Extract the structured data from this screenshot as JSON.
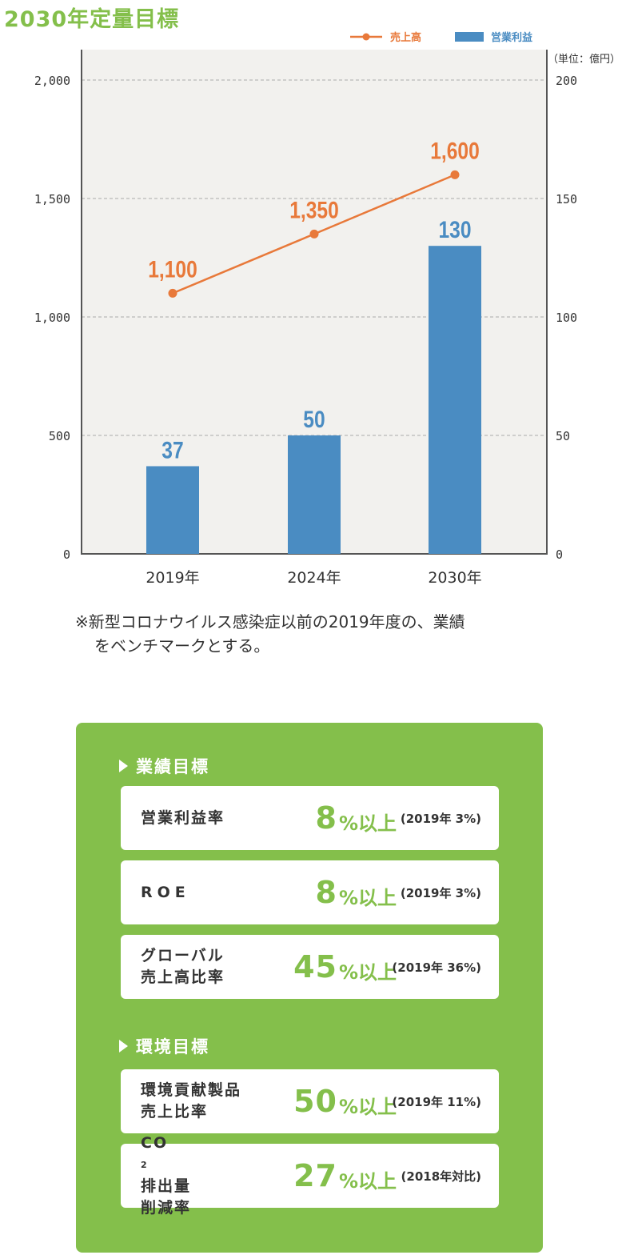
{
  "title": "2030年定量目標",
  "chart_data": {
    "type": "bar",
    "categories": [
      "2019年",
      "2024年",
      "2030年"
    ],
    "series": [
      {
        "name": "営業利益",
        "kind": "bar",
        "axis": "right",
        "values": [
          37,
          50,
          130
        ],
        "labels": [
          "37",
          "50",
          "130"
        ],
        "color": "#4a8cc2"
      },
      {
        "name": "売上高",
        "kind": "line",
        "axis": "left",
        "values": [
          1100,
          1350,
          1600
        ],
        "labels": [
          "1,100",
          "1,350",
          "1,600"
        ],
        "color": "#e8793a"
      }
    ],
    "left_axis": {
      "ylim": [
        0,
        2000
      ],
      "ticks": [
        "0",
        "500",
        "1,000",
        "1,500",
        "2,000"
      ]
    },
    "right_axis": {
      "ylim": [
        0,
        200
      ],
      "ticks": [
        "0",
        "50",
        "100",
        "150",
        "200"
      ],
      "unit": "（単位：億円）"
    },
    "grid": true,
    "legend_placement": "top-right",
    "plot_background": "#f2f1ee"
  },
  "note": {
    "line1": "※新型コロナウイルス感染症以前の2019年度の、業績",
    "line2": "をベンチマークとする。"
  },
  "panel": {
    "color": "#84bf4b",
    "performance": {
      "title": "業績目標",
      "items": [
        {
          "label": [
            "営業利益率"
          ],
          "value": "8",
          "unit": "%以上",
          "ref": "(2019年 3%)"
        },
        {
          "label": [
            "ROE"
          ],
          "value": "8",
          "unit": "%以上",
          "ref": "(2019年 3%)"
        },
        {
          "label": [
            "グローバル",
            "売上高比率"
          ],
          "value": "45",
          "unit": "%以上",
          "ref": "(2019年 36%)"
        }
      ]
    },
    "environment": {
      "title": "環境目標",
      "items": [
        {
          "label": [
            "環境貢献製品",
            "売上比率"
          ],
          "value": "50",
          "unit": "%以上",
          "ref": "(2019年 11%)"
        },
        {
          "label_co2": {
            "pre": "CO",
            "sub": "2",
            "post": "排出量"
          },
          "label2": "削減率",
          "value": "27",
          "unit": "%以上",
          "ref": "(2018年対比)"
        }
      ]
    }
  }
}
